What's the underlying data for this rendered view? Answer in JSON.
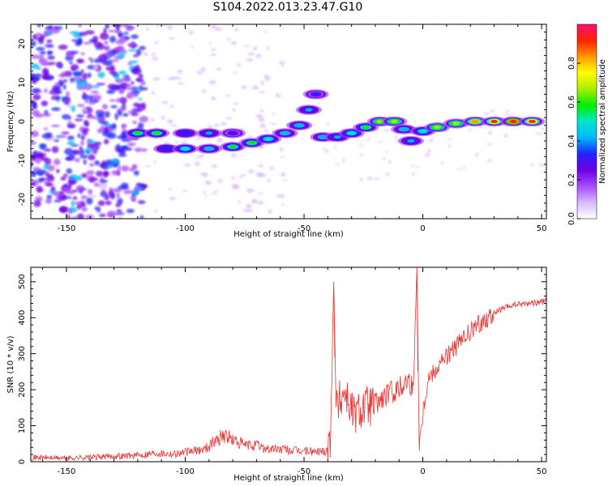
{
  "figure": {
    "title": "S104.2022.013.23.47.G10"
  },
  "colors": {
    "snr_line": "#ee3333",
    "axes": "#000000"
  },
  "chart_data": [
    {
      "type": "heatmap",
      "xlabel": "Height of straight line (km)",
      "ylabel": "Frequency (Hz)",
      "xlim": [
        -165,
        52
      ],
      "ylim": [
        -25,
        25
      ],
      "xticks": [
        -150,
        -100,
        -50,
        0,
        50
      ],
      "yticks": [
        -20,
        -10,
        0,
        10,
        20
      ],
      "colorbar": {
        "label": "Normalized spectral amplitude",
        "range": [
          0,
          1
        ],
        "ticks": [
          "0.0",
          "0.2",
          "0.4",
          "0.6",
          "0.8"
        ],
        "colormap": [
          "#ffffff",
          "#d9b8ff",
          "#a64dff",
          "#7000e0",
          "#2222ff",
          "#00b7ff",
          "#00e5cc",
          "#00ee00",
          "#aaee00",
          "#ffff00",
          "#ff9900",
          "#ff2200",
          "#ff1177"
        ]
      },
      "ridge": [
        {
          "x": -120,
          "y": -3,
          "a": 0.55
        },
        {
          "x": -112,
          "y": -3,
          "a": 0.6
        },
        {
          "x": -100,
          "y": -3,
          "a": 0.35
        },
        {
          "x": -90,
          "y": -3,
          "a": 0.4
        },
        {
          "x": -80,
          "y": -3,
          "a": 0.3
        },
        {
          "x": -108,
          "y": -7,
          "a": 0.35
        },
        {
          "x": -100,
          "y": -7,
          "a": 0.5
        },
        {
          "x": -90,
          "y": -7,
          "a": 0.45
        },
        {
          "x": -80,
          "y": -6.5,
          "a": 0.55
        },
        {
          "x": -72,
          "y": -5.5,
          "a": 0.55
        },
        {
          "x": -65,
          "y": -4.5,
          "a": 0.5
        },
        {
          "x": -58,
          "y": -3,
          "a": 0.45
        },
        {
          "x": -52,
          "y": -1,
          "a": 0.45
        },
        {
          "x": -48,
          "y": 3,
          "a": 0.4
        },
        {
          "x": -45,
          "y": 7,
          "a": 0.3
        },
        {
          "x": -42,
          "y": -4,
          "a": 0.45
        },
        {
          "x": -36,
          "y": -4,
          "a": 0.4
        },
        {
          "x": -30,
          "y": -3,
          "a": 0.5
        },
        {
          "x": -24,
          "y": -1.5,
          "a": 0.6
        },
        {
          "x": -18,
          "y": 0,
          "a": 0.7
        },
        {
          "x": -12,
          "y": 0,
          "a": 0.65
        },
        {
          "x": -8,
          "y": -2,
          "a": 0.45
        },
        {
          "x": -5,
          "y": -5,
          "a": 0.4
        },
        {
          "x": 0,
          "y": -2.5,
          "a": 0.5
        },
        {
          "x": 6,
          "y": -1.5,
          "a": 0.65
        },
        {
          "x": 14,
          "y": -0.5,
          "a": 0.7
        },
        {
          "x": 22,
          "y": 0,
          "a": 0.8
        },
        {
          "x": 30,
          "y": 0,
          "a": 0.9
        },
        {
          "x": 38,
          "y": 0,
          "a": 0.95
        },
        {
          "x": 46,
          "y": 0,
          "a": 0.9
        }
      ]
    },
    {
      "type": "line",
      "xlabel": "Height of straight line (km)",
      "ylabel": "SNR (10 * v/v)",
      "xlim": [
        -165,
        52
      ],
      "ylim": [
        0,
        540
      ],
      "xticks": [
        -150,
        -100,
        -50,
        0,
        50
      ],
      "yticks": [
        0,
        100,
        200,
        300,
        400,
        500
      ],
      "series": [
        {
          "values": [
            {
              "x": -165,
              "y": 12
            },
            {
              "x": -150,
              "y": 10
            },
            {
              "x": -140,
              "y": 12
            },
            {
              "x": -130,
              "y": 15
            },
            {
              "x": -120,
              "y": 18
            },
            {
              "x": -112,
              "y": 25
            },
            {
              "x": -105,
              "y": 22
            },
            {
              "x": -98,
              "y": 28
            },
            {
              "x": -92,
              "y": 35
            },
            {
              "x": -88,
              "y": 55
            },
            {
              "x": -84,
              "y": 75
            },
            {
              "x": -80,
              "y": 60
            },
            {
              "x": -75,
              "y": 45
            },
            {
              "x": -70,
              "y": 45
            },
            {
              "x": -65,
              "y": 35
            },
            {
              "x": -60,
              "y": 35
            },
            {
              "x": -55,
              "y": 30
            },
            {
              "x": -50,
              "y": 30
            },
            {
              "x": -45,
              "y": 28
            },
            {
              "x": -41,
              "y": 30
            },
            {
              "x": -39,
              "y": 60
            },
            {
              "x": -37.5,
              "y": 500
            },
            {
              "x": -36.5,
              "y": 150
            },
            {
              "x": -33,
              "y": 200
            },
            {
              "x": -29,
              "y": 130
            },
            {
              "x": -25,
              "y": 155
            },
            {
              "x": -20,
              "y": 160
            },
            {
              "x": -15,
              "y": 185
            },
            {
              "x": -10,
              "y": 205
            },
            {
              "x": -6,
              "y": 230
            },
            {
              "x": -4,
              "y": 200
            },
            {
              "x": -2.5,
              "y": 540
            },
            {
              "x": -1.5,
              "y": 60
            },
            {
              "x": 2,
              "y": 230
            },
            {
              "x": 8,
              "y": 280
            },
            {
              "x": 14,
              "y": 320
            },
            {
              "x": 20,
              "y": 360
            },
            {
              "x": 26,
              "y": 395
            },
            {
              "x": 32,
              "y": 420
            },
            {
              "x": 38,
              "y": 435
            },
            {
              "x": 44,
              "y": 440
            },
            {
              "x": 52,
              "y": 445
            }
          ]
        }
      ]
    }
  ]
}
